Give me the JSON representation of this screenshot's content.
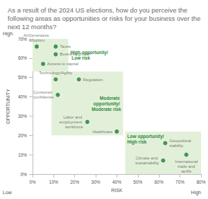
{
  "chart_data": {
    "type": "scatter",
    "title": "As a result of the 2024 US elections, how do you perceive the following areas as opportunities or risks for your business over the next 12 months?",
    "x_label": "RISK",
    "y_label": "OPPORTUNITY",
    "axis_ends": {
      "x": [
        "Low",
        "High"
      ],
      "y": [
        "High"
      ]
    },
    "color": "#1f7a3a",
    "grid": false,
    "data_labels": false,
    "points": [
      {
        "label": "AI/Generative adoption",
        "x": 2,
        "y": 66
      },
      {
        "label": "Taxes",
        "x": 11,
        "y": 66
      },
      {
        "label": "Business growth",
        "x": 11,
        "y": 62
      },
      {
        "label": "Access to capital",
        "x": 5,
        "y": 57
      },
      {
        "label": "Technology/Agility",
        "x": 11,
        "y": 49
      },
      {
        "label": "Regulation",
        "x": 22,
        "y": 49
      },
      {
        "label": "Consumer confidence",
        "x": 12,
        "y": 41
      },
      {
        "label": "Labor and employment workforce",
        "x": 26,
        "y": 27
      },
      {
        "label": "Healthcare",
        "x": 40,
        "y": 22
      },
      {
        "label": "Geopolitical stability",
        "x": 63,
        "y": 16
      },
      {
        "label": "International trade and tariffs",
        "x": 73,
        "y": 10
      },
      {
        "label": "Climate and sustainability",
        "x": 62,
        "y": 7
      }
    ],
    "regions": [
      {
        "label": "High opportunity/ Low risk",
        "x": [
          0,
          17
        ],
        "y": [
          53,
          70
        ],
        "color": "#e3f0d9"
      },
      {
        "label": "Moderate opportunity/ Moderate risk",
        "x": [
          9,
          43
        ],
        "y": [
          20,
          53
        ],
        "color": "#e3f0d9"
      },
      {
        "label": "Low opportunity/ High risk",
        "x": [
          44,
          80
        ],
        "y": [
          0,
          22
        ],
        "color": "#e3f0d9"
      }
    ],
    "xlim": [
      0,
      80
    ],
    "xticks": [
      {
        "value": 0,
        "label": "0%"
      },
      {
        "value": 10,
        "label": "10%"
      },
      {
        "value": 20,
        "label": "20%"
      },
      {
        "value": 30,
        "label": "30%"
      },
      {
        "value": 40,
        "label": "40%"
      },
      {
        "value": 50,
        "label": "50%"
      },
      {
        "value": 60,
        "label": "60%"
      },
      {
        "value": 70,
        "label": "70%"
      },
      {
        "value": 80,
        "label": "80%"
      }
    ],
    "ylim": [
      0,
      70
    ],
    "yticks": [
      {
        "value": 0,
        "label": "0%"
      },
      {
        "value": 10,
        "label": "10%"
      },
      {
        "value": 20,
        "label": "20%"
      },
      {
        "value": 30,
        "label": "30%"
      },
      {
        "value": 40,
        "label": "40%"
      },
      {
        "value": 50,
        "label": "50%"
      },
      {
        "value": 60,
        "label": "60%"
      },
      {
        "value": 70,
        "label": "70%"
      }
    ]
  }
}
